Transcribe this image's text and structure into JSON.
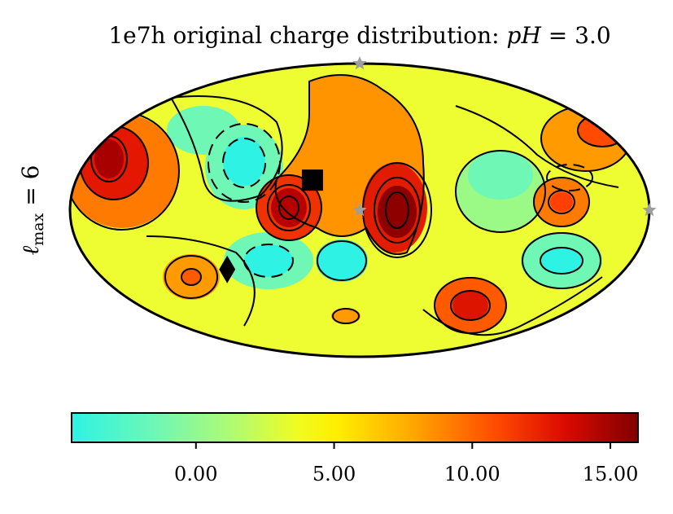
{
  "chart_data": {
    "type": "heatmap",
    "projection": "mollweide",
    "title_prefix": "1e7h original charge distribution: ",
    "title_var": "pH",
    "title_eq": " = 3.0",
    "ylabel_var": "ℓ",
    "ylabel_sub": "max",
    "ylabel_eq": " = 6",
    "colormap": "jet-like (cyan → yellow → red → dark red)",
    "colorbar": {
      "range": [
        -4.5,
        16.0
      ],
      "ticks": [
        0,
        5,
        10,
        15
      ],
      "tick_labels": [
        "0.00",
        "5.00",
        "10.00",
        "15.00"
      ]
    },
    "colors": {
      "low": "#2ef3e4",
      "mid": "#ffff00",
      "high": "#ff2000",
      "max": "#800000",
      "star_markers": "#9e9e9e",
      "square_marker": "#000000",
      "diamond_marker": "#000000"
    },
    "markers": [
      {
        "shape": "square",
        "color": "black",
        "lon": 30,
        "lat": 15
      },
      {
        "shape": "diamond",
        "color": "black",
        "lon": 90,
        "lat": -30
      },
      {
        "shape": "star",
        "color": "gray",
        "lon": 0,
        "lat": 90
      },
      {
        "shape": "star",
        "color": "gray",
        "lon": 0,
        "lat": 0
      },
      {
        "shape": "star",
        "color": "gray",
        "lon": -180,
        "lat": 0
      }
    ],
    "contours": {
      "negative_style": "dashed",
      "positive_style": "solid"
    }
  }
}
